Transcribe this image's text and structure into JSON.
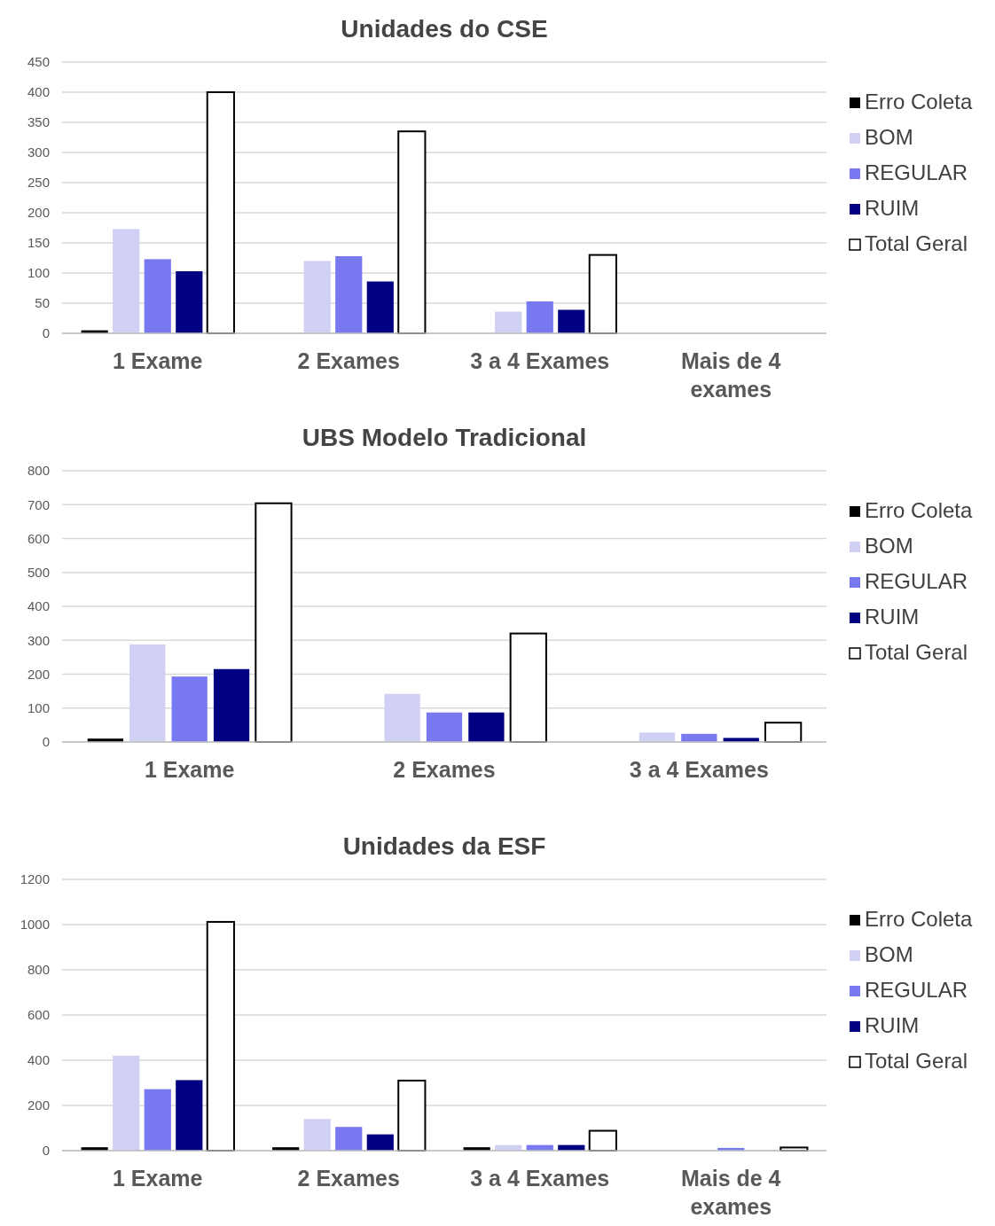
{
  "chart_data": [
    {
      "type": "bar",
      "title": "Unidades do CSE",
      "categories": [
        "1 Exame",
        "2 Exames",
        "3 a 4 Exames",
        "Mais de 4 exames"
      ],
      "ylim": [
        0,
        450
      ],
      "yticks": [
        0,
        50,
        100,
        150,
        200,
        250,
        300,
        350,
        400,
        450
      ],
      "grid": "y",
      "legend": "right",
      "series": [
        {
          "name": "Erro Coleta",
          "color": "#000000",
          "values": [
            5,
            null,
            null,
            null
          ]
        },
        {
          "name": "BOM",
          "color": "#d0d0f4",
          "values": [
            173,
            120,
            36,
            null
          ]
        },
        {
          "name": "REGULAR",
          "color": "#7878f0",
          "values": [
            123,
            128,
            53,
            null
          ]
        },
        {
          "name": "RUIM",
          "color": "#000080",
          "values": [
            103,
            86,
            39,
            null
          ]
        },
        {
          "name": "Total Geral",
          "color": "#ffffff",
          "values": [
            400,
            335,
            130,
            null
          ]
        }
      ]
    },
    {
      "type": "bar",
      "title": "UBS Modelo Tradicional",
      "categories": [
        "1 Exame",
        "2 Exames",
        "3 a 4 Exames"
      ],
      "ylim": [
        0,
        800
      ],
      "yticks": [
        0,
        100,
        200,
        300,
        400,
        500,
        600,
        700,
        800
      ],
      "grid": "y",
      "legend": "right",
      "series": [
        {
          "name": "Erro Coleta",
          "color": "#000000",
          "values": [
            10,
            null,
            null
          ]
        },
        {
          "name": "BOM",
          "color": "#d0d0f4",
          "values": [
            288,
            142,
            28
          ]
        },
        {
          "name": "REGULAR",
          "color": "#7878f0",
          "values": [
            193,
            87,
            24
          ]
        },
        {
          "name": "RUIM",
          "color": "#000080",
          "values": [
            215,
            87,
            12
          ]
        },
        {
          "name": "Total Geral",
          "color": "#ffffff",
          "values": [
            704,
            320,
            57
          ]
        }
      ]
    },
    {
      "type": "bar",
      "title": "Unidades da ESF",
      "categories": [
        "1 Exame",
        "2 Exames",
        "3 a 4 Exames",
        "Mais de 4 exames"
      ],
      "ylim": [
        0,
        1200
      ],
      "yticks": [
        0,
        200,
        400,
        600,
        800,
        1000,
        1200
      ],
      "grid": "y",
      "legend": "right",
      "series": [
        {
          "name": "Erro Coleta",
          "color": "#000000",
          "values": [
            15,
            15,
            15,
            null
          ]
        },
        {
          "name": "BOM",
          "color": "#d0d0f4",
          "values": [
            420,
            140,
            25,
            null
          ]
        },
        {
          "name": "REGULAR",
          "color": "#7878f0",
          "values": [
            272,
            105,
            25,
            12
          ]
        },
        {
          "name": "RUIM",
          "color": "#000080",
          "values": [
            312,
            72,
            25,
            null
          ]
        },
        {
          "name": "Total Geral",
          "color": "#ffffff",
          "values": [
            1012,
            310,
            88,
            14
          ]
        }
      ]
    }
  ]
}
